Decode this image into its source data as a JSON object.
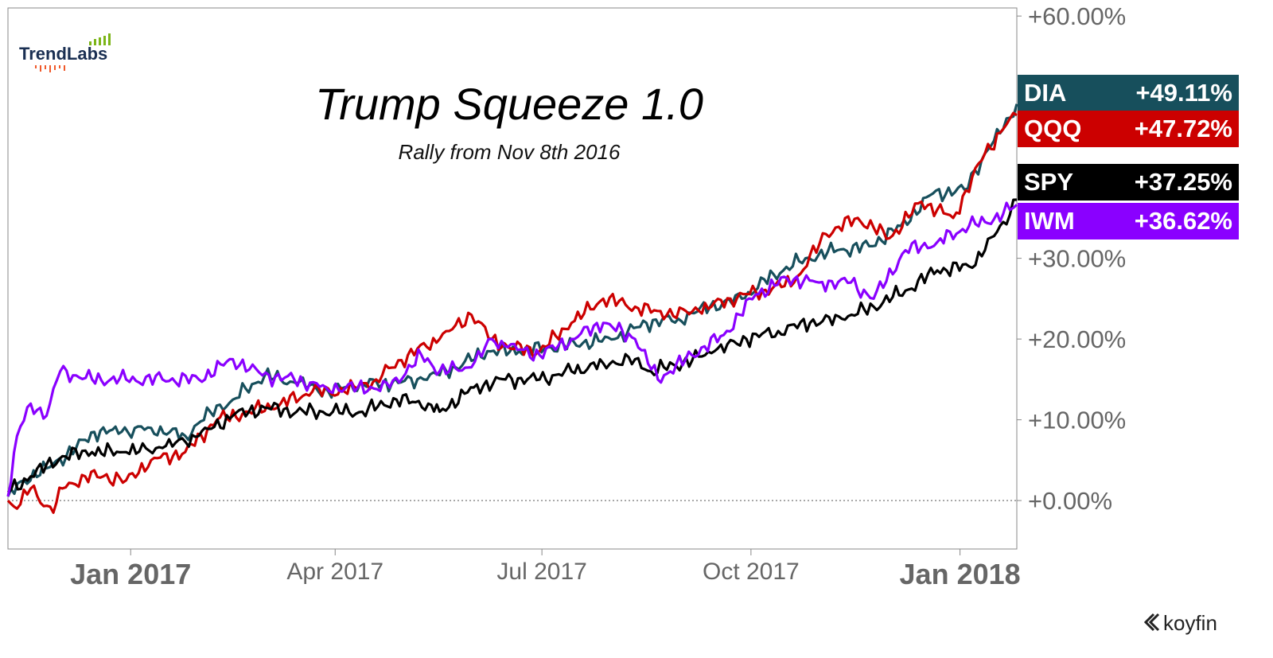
{
  "brand": {
    "logo_text": "TrendLabs",
    "footer_text": "koyfin"
  },
  "colors": {
    "DIA": "#174f5c",
    "QQQ": "#cc0000",
    "SPY": "#000000",
    "IWM": "#8a00ff",
    "axis_text": "#666666"
  },
  "chart_data": {
    "type": "line",
    "title": "Trump Squeeze 1.0",
    "subtitle": "Rally from Nov 8th 2016",
    "x_range": [
      "2016-11-08",
      "2018-01-26"
    ],
    "ylim": [
      -6,
      61
    ],
    "y_ticks": [
      {
        "value": 60,
        "label": "+60.00%"
      },
      {
        "value": 30,
        "label": "+30.00%"
      },
      {
        "value": 20,
        "label": "+20.00%"
      },
      {
        "value": 10,
        "label": "+10.00%"
      },
      {
        "value": 0,
        "label": "+0.00%"
      }
    ],
    "x_ticks": [
      {
        "date": "2017-01-01",
        "label": "Jan 2017",
        "bold": true
      },
      {
        "date": "2017-04-01",
        "label": "Apr 2017",
        "bold": false
      },
      {
        "date": "2017-07-01",
        "label": "Jul 2017",
        "bold": false
      },
      {
        "date": "2017-10-01",
        "label": "Oct 2017",
        "bold": false
      },
      {
        "date": "2018-01-01",
        "label": "Jan 2018",
        "bold": true
      }
    ],
    "grid": false,
    "series": [
      {
        "name": "DIA",
        "last_label": "+49.11%",
        "x": [
          "2016-11-08",
          "2016-11-15",
          "2016-11-25",
          "2016-12-08",
          "2016-12-16",
          "2016-12-28",
          "2017-01-10",
          "2017-01-25",
          "2017-02-05",
          "2017-02-15",
          "2017-03-01",
          "2017-03-15",
          "2017-03-29",
          "2017-04-12",
          "2017-04-26",
          "2017-05-10",
          "2017-05-24",
          "2017-06-07",
          "2017-06-21",
          "2017-07-05",
          "2017-07-19",
          "2017-08-02",
          "2017-08-16",
          "2017-08-30",
          "2017-09-13",
          "2017-09-27",
          "2017-10-11",
          "2017-10-25",
          "2017-11-08",
          "2017-11-22",
          "2017-12-06",
          "2017-12-20",
          "2018-01-03",
          "2018-01-12",
          "2018-01-20",
          "2018-01-26"
        ],
        "y": [
          0.5,
          2.5,
          4,
          6.5,
          8.5,
          8.5,
          9,
          8,
          11,
          12.5,
          15.5,
          14.5,
          13.5,
          14.5,
          14.5,
          15,
          16.5,
          18.5,
          18.5,
          19,
          19.5,
          20,
          22,
          22.5,
          24,
          25,
          28,
          30,
          31,
          31.5,
          34,
          38,
          38.5,
          43,
          46,
          49.11
        ]
      },
      {
        "name": "QQQ",
        "last_label": "+47.72%",
        "x": [
          "2016-11-08",
          "2016-11-12",
          "2016-11-18",
          "2016-11-28",
          "2016-12-02",
          "2016-12-12",
          "2016-12-20",
          "2016-12-30",
          "2017-01-10",
          "2017-01-25",
          "2017-02-08",
          "2017-02-22",
          "2017-03-08",
          "2017-03-22",
          "2017-04-05",
          "2017-04-19",
          "2017-05-03",
          "2017-05-17",
          "2017-05-31",
          "2017-06-09",
          "2017-06-16",
          "2017-06-30",
          "2017-07-14",
          "2017-07-28",
          "2017-08-11",
          "2017-08-25",
          "2017-09-08",
          "2017-09-22",
          "2017-10-06",
          "2017-10-20",
          "2017-11-03",
          "2017-11-17",
          "2017-12-01",
          "2017-12-15",
          "2017-12-29",
          "2018-01-12",
          "2018-01-20",
          "2018-01-26"
        ],
        "y": [
          0,
          -1,
          1.5,
          -1.5,
          1.5,
          3,
          3,
          2.5,
          5,
          6,
          10,
          11,
          12,
          13.5,
          13.5,
          15,
          18,
          20,
          23,
          20,
          19,
          18.5,
          22,
          25,
          24,
          23,
          23.5,
          25,
          26,
          27,
          33,
          35,
          32.5,
          37,
          35,
          43,
          46,
          47.72
        ]
      },
      {
        "name": "SPY",
        "last_label": "+37.25%",
        "x": [
          "2016-11-08",
          "2016-11-18",
          "2016-12-02",
          "2016-12-15",
          "2016-12-30",
          "2017-01-15",
          "2017-01-31",
          "2017-02-15",
          "2017-03-01",
          "2017-03-15",
          "2017-03-31",
          "2017-04-13",
          "2017-04-28",
          "2017-05-12",
          "2017-05-17",
          "2017-06-01",
          "2017-06-15",
          "2017-06-30",
          "2017-07-14",
          "2017-07-28",
          "2017-08-11",
          "2017-08-18",
          "2017-09-01",
          "2017-09-15",
          "2017-09-29",
          "2017-10-13",
          "2017-10-27",
          "2017-11-10",
          "2017-11-24",
          "2017-12-08",
          "2017-12-22",
          "2018-01-05",
          "2018-01-12",
          "2018-01-20",
          "2018-01-26"
        ],
        "y": [
          1,
          3,
          5.5,
          6,
          6,
          6.5,
          8,
          10.5,
          11.5,
          11,
          11,
          11,
          12.5,
          12,
          11,
          14,
          15,
          15,
          16,
          17,
          17.5,
          16,
          17,
          18.5,
          20,
          21,
          22,
          22.5,
          24,
          26,
          28.5,
          29,
          31,
          34.5,
          37.25
        ]
      },
      {
        "name": "IWM",
        "last_label": "+36.62%",
        "x": [
          "2016-11-08",
          "2016-11-12",
          "2016-11-18",
          "2016-11-25",
          "2016-12-01",
          "2016-12-08",
          "2016-12-15",
          "2016-12-30",
          "2017-01-15",
          "2017-01-31",
          "2017-02-15",
          "2017-02-28",
          "2017-03-14",
          "2017-03-28",
          "2017-04-11",
          "2017-04-25",
          "2017-05-09",
          "2017-05-17",
          "2017-05-31",
          "2017-06-09",
          "2017-06-16",
          "2017-06-30",
          "2017-07-14",
          "2017-07-28",
          "2017-08-11",
          "2017-08-21",
          "2017-09-05",
          "2017-09-19",
          "2017-10-03",
          "2017-10-17",
          "2017-10-31",
          "2017-11-14",
          "2017-11-24",
          "2017-12-08",
          "2017-12-22",
          "2018-01-05",
          "2018-01-12",
          "2018-01-20",
          "2018-01-26"
        ],
        "y": [
          0.5,
          8,
          12,
          10.5,
          16,
          15.5,
          15,
          15,
          15,
          15,
          17.5,
          15.5,
          15,
          14,
          14,
          14,
          18,
          16,
          16.5,
          20,
          19,
          18,
          20,
          22,
          20,
          15,
          18,
          20.5,
          25.5,
          27.5,
          27,
          27,
          25,
          31,
          32,
          34,
          34.5,
          35.5,
          36.62
        ]
      }
    ]
  }
}
